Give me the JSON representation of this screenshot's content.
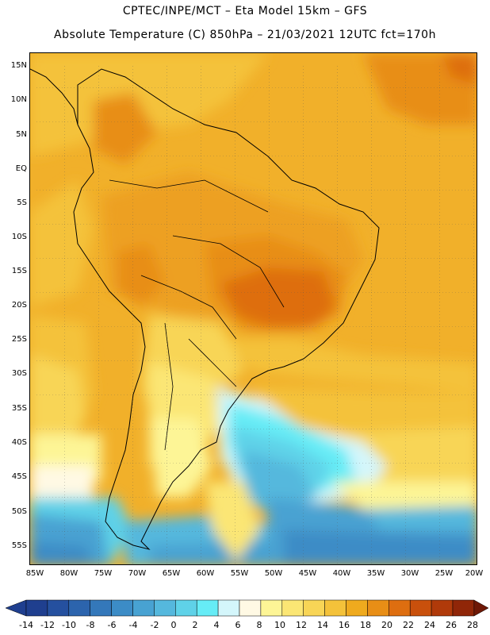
{
  "title": {
    "line1": "CPTEC/INPE/MCT –  Eta Model 15km – GFS",
    "line2": "Absolute Temperature (C) 850hPa – 21/03/2021 12UTC fct=170h"
  },
  "map": {
    "lat_labels": [
      "15N",
      "10N",
      "5N",
      "EQ",
      "5S",
      "10S",
      "15S",
      "20S",
      "25S",
      "30S",
      "35S",
      "40S",
      "45S",
      "50S",
      "55S"
    ],
    "lon_labels": [
      "85W",
      "80W",
      "75W",
      "70W",
      "65W",
      "60W",
      "55W",
      "50W",
      "45W",
      "40W",
      "35W",
      "30W",
      "25W",
      "20W"
    ]
  },
  "colorbar": {
    "labels": [
      "-14",
      "-12",
      "-10",
      "-8",
      "-6",
      "-4",
      "-2",
      "0",
      "2",
      "4",
      "6",
      "8",
      "10",
      "12",
      "14",
      "16",
      "18",
      "20",
      "22",
      "24",
      "26",
      "28"
    ],
    "colors": [
      "#1f3f8f",
      "#25509f",
      "#2c64ad",
      "#3478ba",
      "#3c8cc6",
      "#48a2d2",
      "#55b8dd",
      "#5fd2e8",
      "#66ecf6",
      "#d4f6fb",
      "#fff9e4",
      "#fdf596",
      "#fbe674",
      "#f8d556",
      "#f4c23a",
      "#efaa1e",
      "#e88e16",
      "#de6e10",
      "#c9500c",
      "#b03a0a",
      "#902608",
      "#6e1806"
    ]
  }
}
